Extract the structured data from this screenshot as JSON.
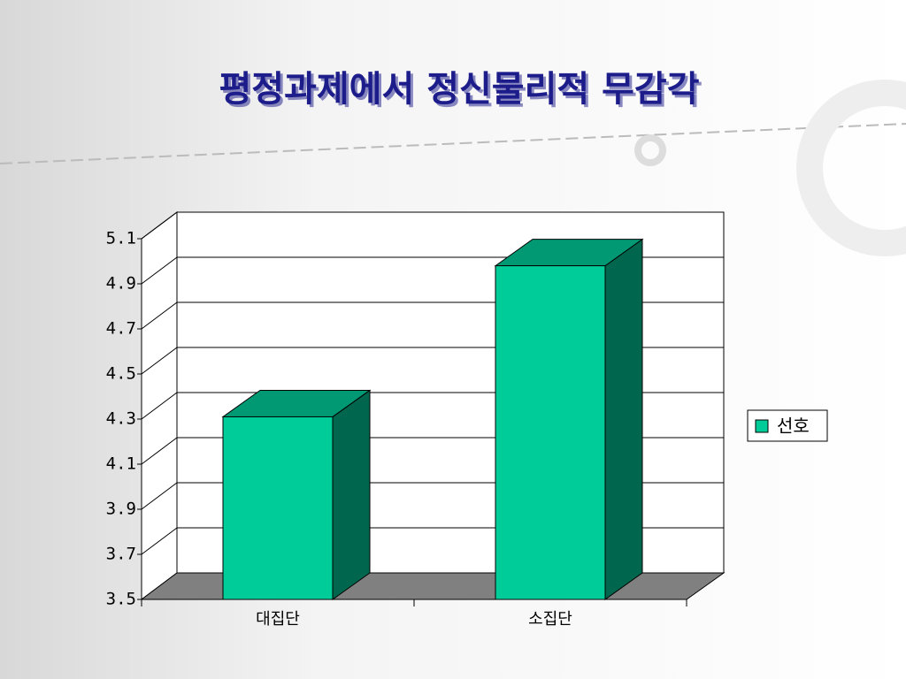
{
  "chart_data": {
    "type": "bar",
    "title": "평정과제에서 정신물리적 무감각",
    "categories": [
      "대집단",
      "소집단"
    ],
    "series": [
      {
        "name": "선호",
        "color": "#00cc99",
        "values": [
          4.31,
          4.98
        ]
      }
    ],
    "ylim": [
      3.5,
      5.1
    ],
    "yticks": [
      3.5,
      3.7,
      3.9,
      4.1,
      4.3,
      4.5,
      4.7,
      4.9,
      5.1
    ],
    "grid": true,
    "legend": "right"
  }
}
